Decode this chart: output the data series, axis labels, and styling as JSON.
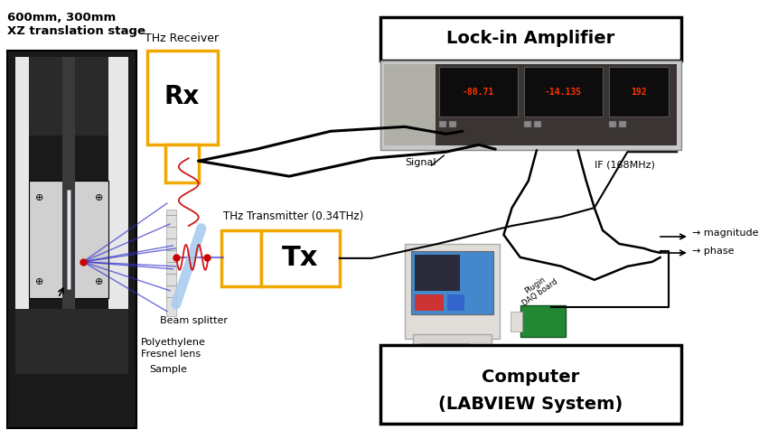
{
  "bg_color": "#ffffff",
  "colors": {
    "black": "#000000",
    "gold": "#f0a800",
    "dark_stage": "#1a1a1a",
    "mid_stage": "#444444",
    "light_stage": "#cccccc",
    "carriage_bg": "#d0d0d0",
    "white": "#ffffff",
    "blue_beam": "#3333cc",
    "red_dot": "#cc0000",
    "beam_splitter": "#aaccee",
    "instr_bg": "#c8c8c8",
    "instr_dark": "#3a3533",
    "display_red": "#ff2200",
    "display_dark": "#111111"
  },
  "stage_label1": "600mm, 300mm",
  "stage_label2": "XZ translation stage",
  "rx_label": "THz Receiver",
  "rx_text": "Rx",
  "tx_label": "THz Transmitter (0.34THz)",
  "tx_text": "Tx",
  "lockin_title": "Lock-in Amplifier",
  "computer_title1": "Computer",
  "computer_title2": "(LABVIEW System)",
  "bs_label": "Beam splitter",
  "poly_label1": "Polyethylene",
  "poly_label2": "Fresnel lens",
  "sample_label": "Sample",
  "signal_text": "Signal",
  "if_text": "IF (168MHz)",
  "magnitude_text": "→ magnitude",
  "phase_text": "→ phase",
  "plugin_text": "Plugin\nDAQ board",
  "display_texts": [
    "-80.71",
    "-14.135",
    "192"
  ]
}
